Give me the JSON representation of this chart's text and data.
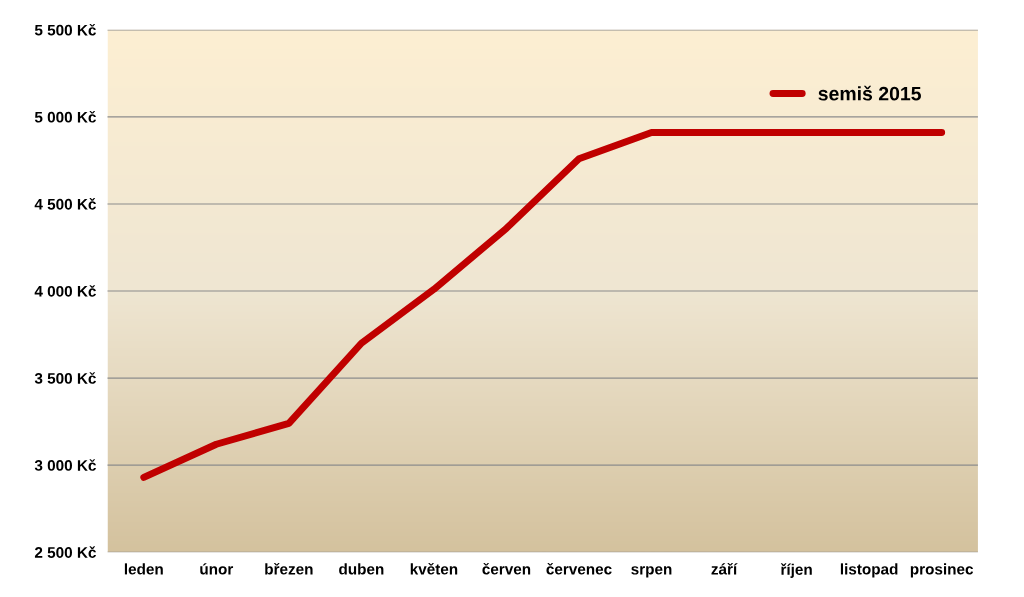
{
  "chart_data": {
    "type": "line",
    "categories": [
      "leden",
      "únor",
      "březen",
      "duben",
      "květen",
      "červen",
      "červenec",
      "srpen",
      "září",
      "říjen",
      "listopad",
      "prosinec"
    ],
    "series": [
      {
        "name": "semiš 2015",
        "color": "#c00000",
        "values": [
          2930,
          3120,
          3240,
          3700,
          4010,
          4360,
          4760,
          4910,
          4910,
          4910,
          4910,
          4910
        ]
      }
    ],
    "ylim": [
      2500,
      5500
    ],
    "yticks": [
      {
        "value": 2500,
        "label": "2 500 Kč"
      },
      {
        "value": 3000,
        "label": "3 000 Kč"
      },
      {
        "value": 3500,
        "label": "3 500 Kč"
      },
      {
        "value": 4000,
        "label": "4 000 Kč"
      },
      {
        "value": 4500,
        "label": "4 500 Kč"
      },
      {
        "value": 5000,
        "label": "5 000 Kč"
      },
      {
        "value": 5500,
        "label": "5 500 Kč"
      }
    ],
    "grid": "y",
    "legend": "top right",
    "marker": "none",
    "line_style": "solid"
  }
}
